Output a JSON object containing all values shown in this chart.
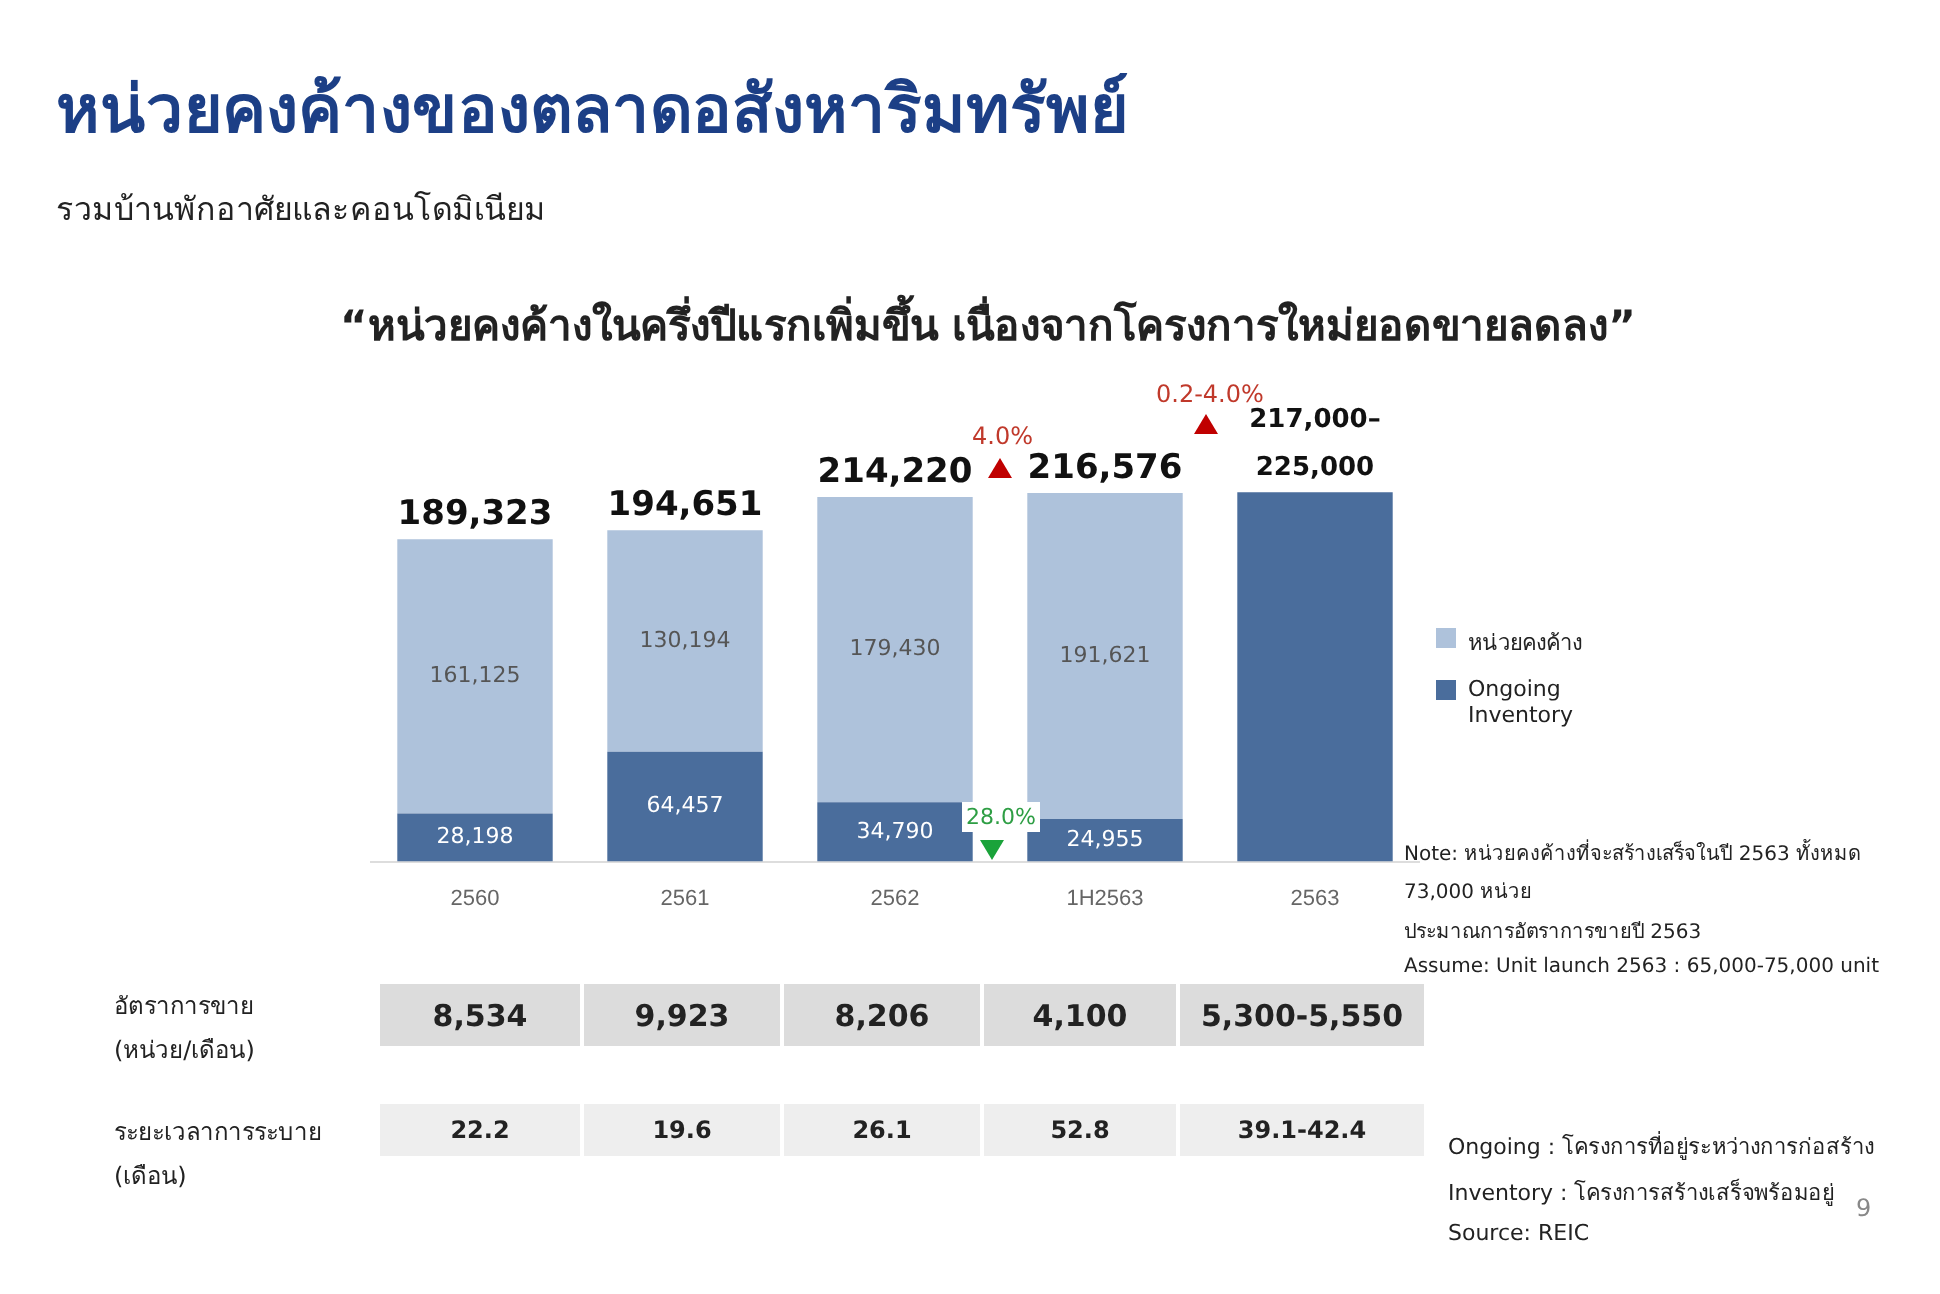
{
  "chart_data": {
    "type": "bar",
    "title": "หน่วยคงค้างของตลาดอสังหาริมทรัพย์",
    "subtitle": "รวมบ้านพักอาศัยและคอนโดมิเนียม",
    "categories": [
      "2560",
      "2561",
      "2562",
      "1H2563",
      "2563"
    ],
    "stacked": true,
    "series": [
      {
        "name": "Ongoing Inventory",
        "color": "#4a6d9c",
        "values": [
          28198,
          64457,
          34790,
          24955,
          217000
        ],
        "value_labels": [
          "28,198",
          "64,457",
          "34,790",
          "24,955",
          null
        ]
      },
      {
        "name": "หน่วยคงค้าง",
        "color": "#aec2db",
        "values": [
          161125,
          130194,
          179430,
          191621,
          null
        ],
        "value_labels": [
          "161,125",
          "130,194",
          "179,430",
          "191,621",
          null
        ]
      }
    ],
    "totals": [
      "189,323",
      "194,651",
      "214,220",
      "216,576",
      "217,000–225,000"
    ],
    "legend": "right",
    "grid": false,
    "annotations": [
      "“หน่วยคงค้างในครึ่งปีแรกเพิ่มขึ้น เนื่องจากโครงการใหม่ยอดขายลดลง”",
      "4.0%",
      "0.2-4.0%",
      "28.0%",
      "อัตราการขาย (หน่วย/เดือน)",
      "8,534",
      "9,923",
      "8,206",
      "4,100",
      "5,300-5,550",
      "ระยะเวลาการระบาย (เดือน)",
      "22.2",
      "19.6",
      "26.1",
      "52.8",
      "39.1-42.4",
      "Note: หน่วยคงค้างที่จะสร้างเสร็จในปี 2563 ทั้งหมด 73,000 หน่วย",
      "ประมาณการอัตราการขายปี 2563",
      "Assume: Unit launch 2563 : 65,000-75,000 unit",
      "Ongoing : โครงการที่อยู่ระหว่างการก่อสร้าง",
      "Inventory : โครงการสร้างเสร็จพร้อมอยู่",
      "Source: REIC",
      "9"
    ]
  }
}
